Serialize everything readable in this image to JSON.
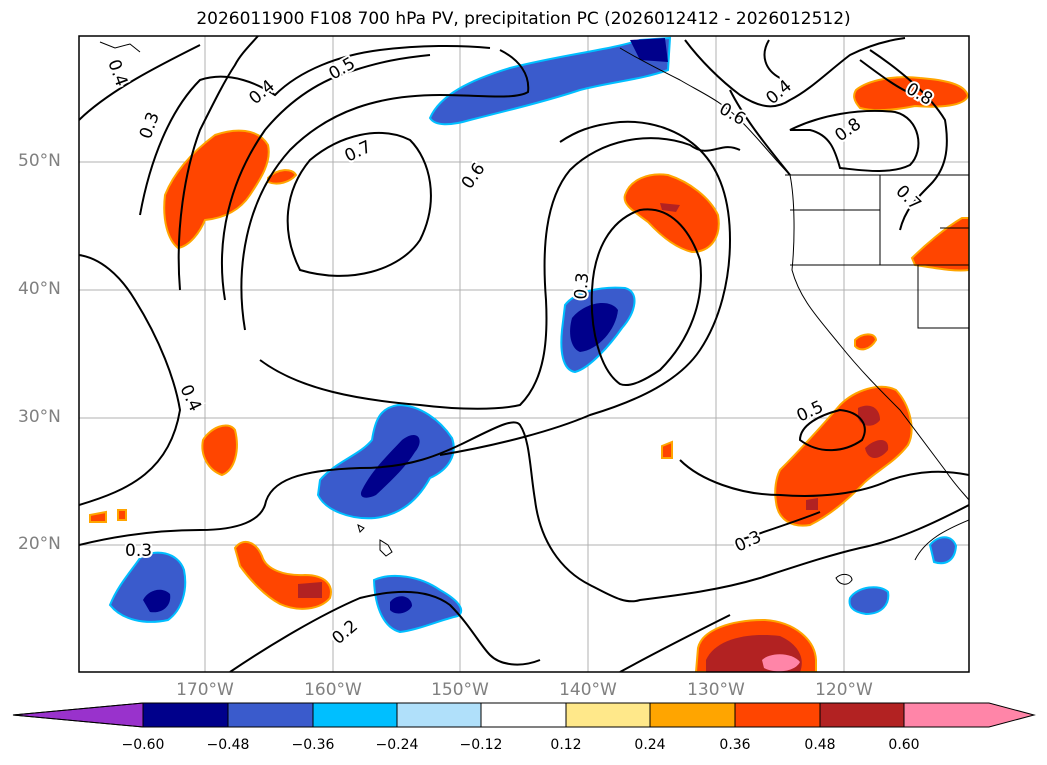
{
  "title": "2026011900 F108 700 hPa PV, precipitation PC (2026012412 - 2026012512)",
  "lat_labels": [
    "50°N",
    "40°N",
    "30°N",
    "20°N"
  ],
  "lon_labels": [
    "170°W",
    "160°W",
    "150°W",
    "140°W",
    "130°W",
    "120°W"
  ],
  "contour_labels": [
    "0.4",
    "0.3",
    "0.4",
    "0.5",
    "0.7",
    "0.6",
    "0.6",
    "0.4",
    "0.8",
    "0.8",
    "0.7",
    "0.3",
    "0.4",
    "0.3",
    "0.5",
    "0.3",
    "0.2"
  ],
  "colorbar": {
    "ticks": [
      "−0.60",
      "−0.48",
      "−0.36",
      "−0.24",
      "−0.12",
      "0.12",
      "0.24",
      "0.36",
      "0.48",
      "0.60"
    ],
    "colors": [
      "#9932cc",
      "#00008b",
      "#3a5bcc",
      "#00bfff",
      "#b0e0fa",
      "#ffffff",
      "#ffe88a",
      "#ffa500",
      "#ff4500",
      "#b22222",
      "#ff85a8"
    ]
  }
}
